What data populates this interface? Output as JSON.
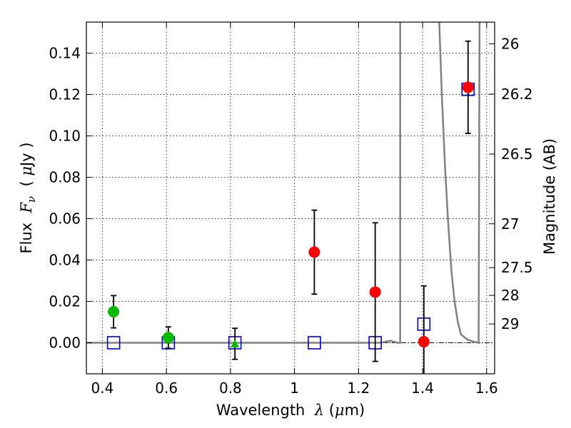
{
  "chart_data": {
    "type": "scatter",
    "title": "",
    "xlabel_parts": [
      "Wavelength  ",
      "λ",
      " (",
      "μ",
      "m)"
    ],
    "ylabel_parts": [
      "Flux  ",
      "F",
      "ν",
      "  ( ",
      "μ",
      "Jy )"
    ],
    "y2label": "Magnitude (AB)",
    "xlim": [
      0.35,
      1.625
    ],
    "ylim": [
      -0.015,
      0.155
    ],
    "xticks": [
      0.4,
      0.6,
      0.8,
      1.0,
      1.2,
      1.4,
      1.6
    ],
    "xtick_labels": [
      "0.4",
      "0.6",
      "0.8",
      "1",
      "1.2",
      "1.4",
      "1.6"
    ],
    "yticks": [
      0.0,
      0.02,
      0.04,
      0.06,
      0.08,
      0.1,
      0.12,
      0.14
    ],
    "ytick_labels": [
      "0.00",
      "0.02",
      "0.04",
      "0.06",
      "0.08",
      "0.10",
      "0.12",
      "0.14"
    ],
    "y2ticks": [
      {
        "label": "26",
        "flux": 0.1445
      },
      {
        "label": "26.2",
        "flux": 0.1202
      },
      {
        "label": "26.5",
        "flux": 0.0912
      },
      {
        "label": "27",
        "flux": 0.0575
      },
      {
        "label": "27.5",
        "flux": 0.0363
      },
      {
        "label": "28",
        "flux": 0.0229
      },
      {
        "label": "29",
        "flux": 0.0091
      }
    ],
    "grid": true,
    "colors": {
      "red": "#ff0000",
      "green": "#00bb00",
      "blue": "#0000cc",
      "model": "#808080"
    },
    "series": [
      {
        "marker": "circle",
        "color": "#00bb00",
        "points": [
          {
            "x": 0.435,
            "y": 0.015,
            "err": 0.0078
          },
          {
            "x": 0.606,
            "y": 0.0025,
            "err": 0.0052
          }
        ]
      },
      {
        "marker": "triangle",
        "color": "#00bb00",
        "points": [
          {
            "x": 0.814,
            "y": -0.0005,
            "err": 0.0075
          }
        ]
      },
      {
        "marker": "circle",
        "color": "#ff0000",
        "points": [
          {
            "x": 1.062,
            "y": 0.0438,
            "err": 0.0203
          },
          {
            "x": 1.252,
            "y": 0.0245,
            "err": 0.0335
          },
          {
            "x": 1.404,
            "y": 0.0005,
            "err": 0.027
          },
          {
            "x": 1.542,
            "y": 0.1235,
            "err": 0.0223
          }
        ]
      },
      {
        "marker": "square",
        "color": "#0000cc",
        "points": [
          {
            "x": 0.435,
            "y": 0.0
          },
          {
            "x": 0.606,
            "y": 0.0
          },
          {
            "x": 0.814,
            "y": 0.0
          },
          {
            "x": 1.062,
            "y": 0.0
          },
          {
            "x": 1.252,
            "y": 0.0
          },
          {
            "x": 1.404,
            "y": 0.009
          },
          {
            "x": 1.542,
            "y": 0.1225
          }
        ]
      }
    ],
    "model_curve": [
      [
        0.35,
        0.0
      ],
      [
        1.27,
        0.0
      ],
      [
        1.3,
        0.001
      ],
      [
        1.32,
        0.0
      ],
      [
        1.33,
        0.0
      ],
      [
        1.33,
        0.16
      ],
      [
        1.451,
        0.16
      ],
      [
        1.46,
        0.12
      ],
      [
        1.47,
        0.085
      ],
      [
        1.48,
        0.058
      ],
      [
        1.49,
        0.035
      ],
      [
        1.5,
        0.02
      ],
      [
        1.51,
        0.01
      ],
      [
        1.52,
        0.004
      ],
      [
        1.54,
        0.0015
      ],
      [
        1.56,
        0.0005
      ],
      [
        1.575,
        0.0
      ],
      [
        1.578,
        0.16
      ]
    ]
  }
}
